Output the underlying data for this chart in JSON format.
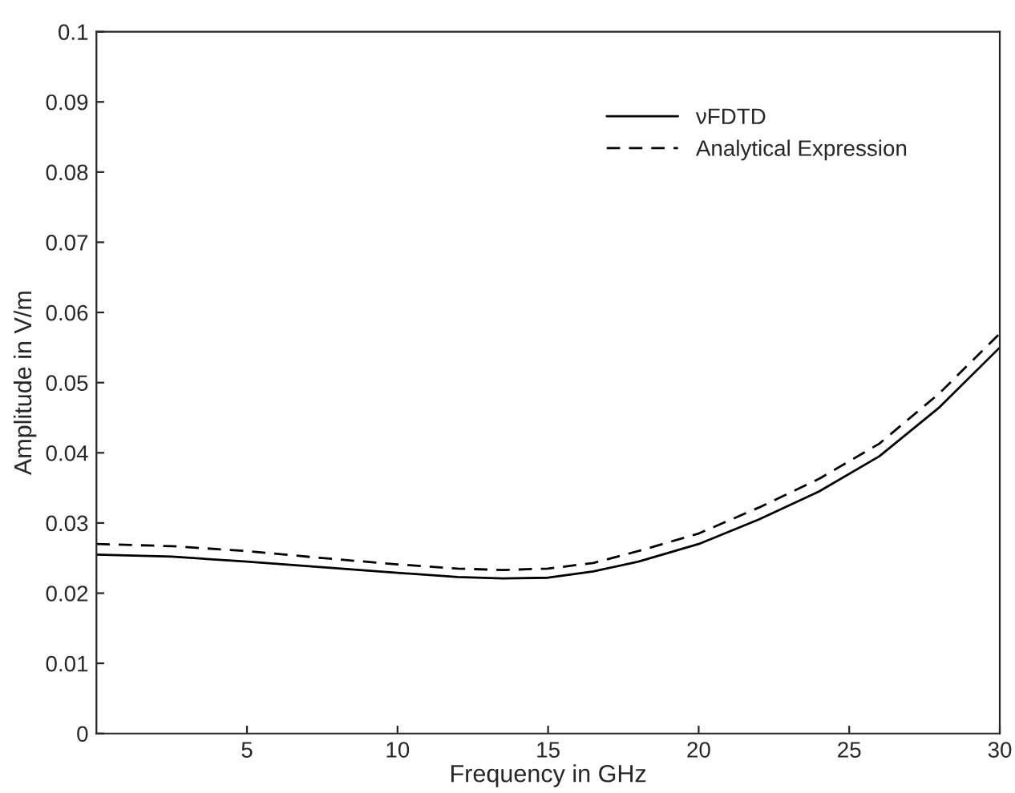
{
  "chart_data": {
    "type": "line",
    "xlabel": "Frequency in GHz",
    "ylabel": "Amplitude in V/m",
    "x": [
      0,
      2.5,
      5,
      7.5,
      10,
      12,
      13.5,
      15,
      16.5,
      18,
      20,
      22,
      24,
      26,
      28,
      30
    ],
    "series": [
      {
        "name": "νFDTD",
        "color": "#000000",
        "line_style": "solid",
        "values": [
          0.0255,
          0.0252,
          0.0245,
          0.0237,
          0.0229,
          0.0223,
          0.0221,
          0.0222,
          0.0231,
          0.0245,
          0.027,
          0.0305,
          0.0345,
          0.0395,
          0.0465,
          0.055
        ]
      },
      {
        "name": "Analytical Expression",
        "color": "#000000",
        "line_style": "dashed",
        "values": [
          0.027,
          0.0267,
          0.026,
          0.025,
          0.0241,
          0.0235,
          0.0233,
          0.0235,
          0.0243,
          0.026,
          0.0285,
          0.0322,
          0.0363,
          0.0413,
          0.0485,
          0.057
        ]
      }
    ],
    "xlim": [
      0,
      30
    ],
    "xticks": [
      5,
      10,
      15,
      20,
      25,
      30
    ],
    "ylim": [
      0,
      0.1
    ],
    "yticks": [
      0,
      0.01,
      0.02,
      0.03,
      0.04,
      0.05,
      0.06,
      0.07,
      0.08,
      0.09,
      0.1
    ],
    "grid": false,
    "legend": "top right"
  }
}
